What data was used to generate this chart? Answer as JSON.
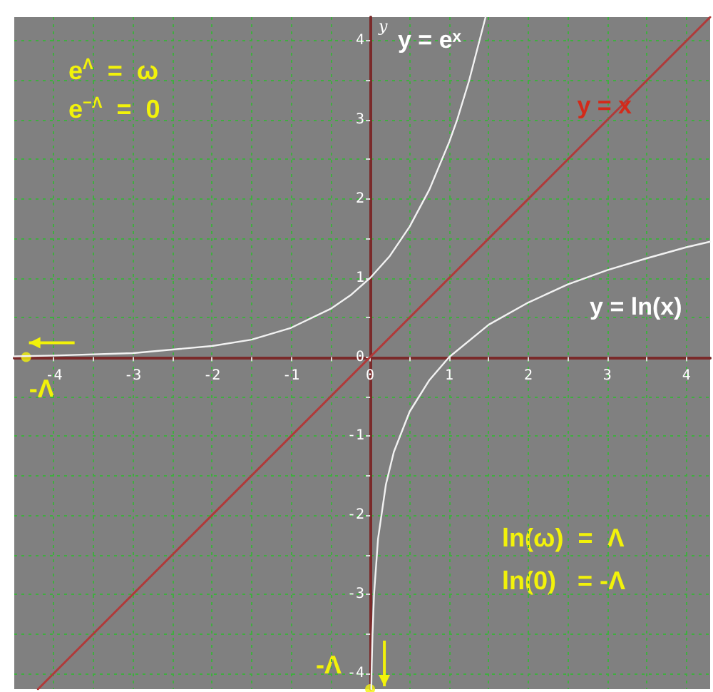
{
  "chart_data": {
    "type": "line",
    "ylabel": "y",
    "xlim": [
      -4.5,
      4.3
    ],
    "ylim": [
      -4.2,
      4.3
    ],
    "xticks": [
      -4,
      {
        "value": -3.5,
        "label": null
      },
      -3,
      {
        "value": -2.5,
        "label": null
      },
      -2,
      {
        "value": -1.5,
        "label": null
      },
      -1,
      {
        "value": -0.5,
        "label": null
      },
      0,
      {
        "value": 0.5,
        "label": null
      },
      1,
      {
        "value": 1.5,
        "label": null
      },
      2,
      {
        "value": 2.5,
        "label": null
      },
      3,
      {
        "value": 3.5,
        "label": null
      },
      4
    ],
    "yticks": [
      -4,
      {
        "value": -3.5,
        "label": null
      },
      -3,
      {
        "value": -2.5,
        "label": null
      },
      -2,
      {
        "value": -1.5,
        "label": null
      },
      -1,
      {
        "value": -0.5,
        "label": null
      },
      0,
      {
        "value": 0.5,
        "label": null
      },
      1,
      {
        "value": 1.5,
        "label": null
      },
      2,
      {
        "value": 2.5,
        "label": null
      },
      3,
      {
        "value": 3.5,
        "label": null
      },
      4
    ],
    "grid": true,
    "legend": false,
    "marker": "none",
    "line_style": "solid",
    "series": [
      {
        "name": "y = eˣ",
        "color": "#f2f2f2",
        "x": [
          -4.5,
          -4,
          -3,
          -2,
          -1.5,
          -1,
          -0.5,
          -0.25,
          0,
          0.25,
          0.5,
          0.75,
          1,
          1.1,
          1.25,
          1.46
        ],
        "values": [
          0.01,
          0.02,
          0.05,
          0.14,
          0.22,
          0.37,
          0.61,
          0.78,
          1,
          1.28,
          1.65,
          2.12,
          2.72,
          3,
          3.49,
          4.3
        ]
      },
      {
        "name": "y = x",
        "color": "#b03a3a",
        "x": [
          -4.2,
          4.3
        ],
        "values": [
          -4.2,
          4.3
        ]
      },
      {
        "type": "scatter",
        "marker": "circle",
        "color": "#f2f20a",
        "x": [
          -4.35,
          0
        ],
        "values": [
          0,
          -4.2
        ]
      },
      {
        "name": "y = ln(x)",
        "color": "#f2f2f2",
        "x": [
          0.015,
          0.02,
          0.03,
          0.05,
          0.1,
          0.2,
          0.3,
          0.5,
          0.75,
          1,
          1.5,
          2,
          2.5,
          3,
          3.5,
          4,
          4.3
        ],
        "values": [
          -4.2,
          -3.91,
          -3.51,
          -3,
          -2.3,
          -1.61,
          -1.2,
          -0.69,
          -0.29,
          0,
          0.41,
          0.69,
          0.92,
          1.1,
          1.25,
          1.39,
          1.46
        ]
      }
    ],
    "annotations": [
      "e$^{Λ}$  =  ω",
      "e$^{−Λ}$  =  0",
      "ln(ω)  =  Λ",
      "ln(0)   = -Λ",
      {
        "text": "-Λ",
        "x": -4.35,
        "y": 0
      },
      {
        "text": "-Λ",
        "x": 0,
        "y": -4.2
      }
    ]
  }
}
